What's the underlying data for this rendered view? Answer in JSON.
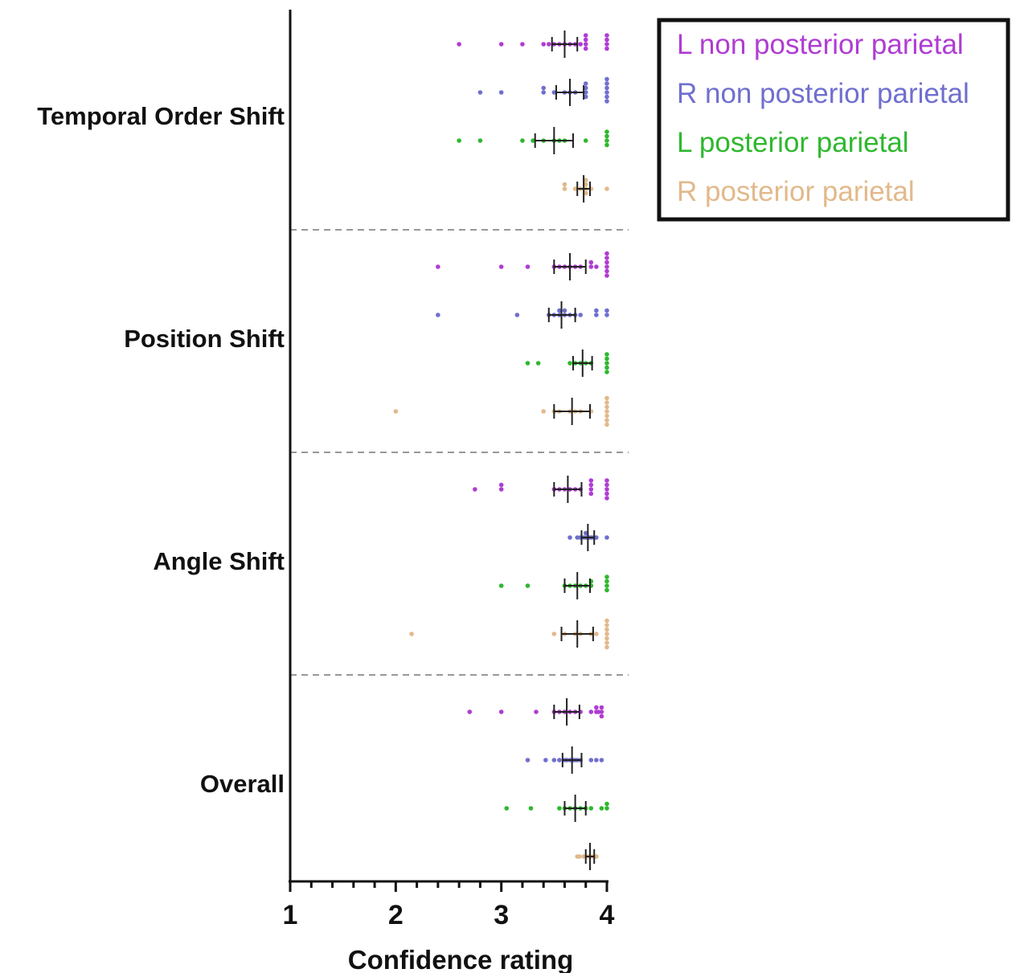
{
  "chart_data": {
    "type": "scatter",
    "orientation": "horizontal",
    "xlabel": "Confidence rating",
    "xlim": [
      1,
      4
    ],
    "xticks": [
      "1",
      "2",
      "3",
      "4"
    ],
    "groups": [
      "Temporal Order Shift",
      "Position Shift",
      "Angle Shift",
      "Overall"
    ],
    "legend_position": "top-right",
    "series": [
      {
        "name": "L non posterior parietal",
        "color": "#b03cd3"
      },
      {
        "name": "R non posterior parietal",
        "color": "#6f6fcf"
      },
      {
        "name": "L posterior parietal",
        "color": "#2eb82e"
      },
      {
        "name": "R posterior parietal",
        "color": "#e2b98b"
      }
    ],
    "data": [
      [
        {
          "points": [
            2.6,
            3.0,
            3.2,
            3.4,
            3.45,
            3.5,
            3.55,
            3.6,
            3.65,
            3.7,
            3.75,
            3.8,
            3.8,
            3.8,
            3.8,
            4.0,
            4.0,
            4.0,
            4.0
          ],
          "mean": 3.6,
          "err": [
            3.48,
            3.72
          ]
        },
        {
          "points": [
            2.8,
            3.0,
            3.4,
            3.4,
            3.5,
            3.6,
            3.65,
            3.7,
            3.8,
            3.8,
            3.8,
            3.8,
            4.0,
            4.0,
            4.0,
            4.0,
            4.0,
            4.0
          ],
          "mean": 3.65,
          "err": [
            3.52,
            3.78
          ]
        },
        {
          "points": [
            2.6,
            2.8,
            3.2,
            3.3,
            3.4,
            3.5,
            3.55,
            3.6,
            3.8,
            4.0,
            4.0,
            4.0,
            4.0
          ],
          "mean": 3.5,
          "err": [
            3.32,
            3.68
          ]
        },
        {
          "points": [
            3.6,
            3.6,
            3.7,
            3.75,
            3.8,
            3.8,
            3.8,
            3.8,
            3.85,
            4.0
          ],
          "mean": 3.78,
          "err": [
            3.72,
            3.84
          ]
        }
      ],
      [
        {
          "points": [
            2.4,
            3.0,
            3.25,
            3.5,
            3.55,
            3.6,
            3.65,
            3.7,
            3.75,
            3.85,
            3.85,
            3.9,
            4.0,
            4.0,
            4.0,
            4.0,
            4.0,
            4.0
          ],
          "mean": 3.65,
          "err": [
            3.5,
            3.8
          ]
        },
        {
          "points": [
            2.4,
            3.15,
            3.45,
            3.5,
            3.55,
            3.55,
            3.6,
            3.6,
            3.65,
            3.7,
            3.75,
            3.9,
            3.9,
            4.0,
            4.0
          ],
          "mean": 3.57,
          "err": [
            3.45,
            3.7
          ]
        },
        {
          "points": [
            3.25,
            3.35,
            3.65,
            3.7,
            3.75,
            3.8,
            3.85,
            4.0,
            4.0,
            4.0,
            4.0,
            4.0
          ],
          "mean": 3.77,
          "err": [
            3.68,
            3.86
          ]
        },
        {
          "points": [
            2.0,
            3.4,
            3.5,
            3.55,
            3.65,
            3.7,
            3.75,
            3.85,
            4.0,
            4.0,
            4.0,
            4.0,
            4.0,
            4.0,
            4.0
          ],
          "mean": 3.67,
          "err": [
            3.5,
            3.84
          ]
        }
      ],
      [
        {
          "points": [
            2.75,
            3.0,
            3.0,
            3.5,
            3.55,
            3.6,
            3.65,
            3.7,
            3.75,
            3.85,
            3.85,
            3.85,
            3.85,
            4.0,
            4.0,
            4.0,
            4.0,
            4.0
          ],
          "mean": 3.63,
          "err": [
            3.5,
            3.76
          ]
        },
        {
          "points": [
            3.65,
            3.72,
            3.75,
            3.78,
            3.8,
            3.8,
            3.82,
            3.83,
            3.85,
            3.86,
            3.88,
            3.9,
            4.0
          ],
          "mean": 3.82,
          "err": [
            3.76,
            3.88
          ]
        },
        {
          "points": [
            3.0,
            3.25,
            3.6,
            3.65,
            3.7,
            3.75,
            3.8,
            3.85,
            3.85,
            4.0,
            4.0,
            4.0,
            4.0
          ],
          "mean": 3.72,
          "err": [
            3.6,
            3.84
          ]
        },
        {
          "points": [
            2.15,
            3.5,
            3.6,
            3.7,
            3.75,
            3.85,
            3.9,
            4.0,
            4.0,
            4.0,
            4.0,
            4.0,
            4.0,
            4.0
          ],
          "mean": 3.72,
          "err": [
            3.57,
            3.87
          ]
        }
      ],
      [
        {
          "points": [
            2.7,
            3.0,
            3.33,
            3.5,
            3.55,
            3.6,
            3.65,
            3.7,
            3.75,
            3.85,
            3.9,
            3.9,
            3.92,
            3.95,
            3.95,
            3.95
          ],
          "mean": 3.62,
          "err": [
            3.5,
            3.74
          ]
        },
        {
          "points": [
            3.25,
            3.42,
            3.5,
            3.55,
            3.6,
            3.62,
            3.65,
            3.68,
            3.7,
            3.72,
            3.75,
            3.85,
            3.9,
            3.95
          ],
          "mean": 3.67,
          "err": [
            3.58,
            3.76
          ]
        },
        {
          "points": [
            3.05,
            3.28,
            3.55,
            3.6,
            3.65,
            3.7,
            3.75,
            3.8,
            3.85,
            3.95,
            4.0,
            4.0
          ],
          "mean": 3.7,
          "err": [
            3.6,
            3.8
          ]
        },
        {
          "points": [
            3.72,
            3.74,
            3.78,
            3.8,
            3.82,
            3.84,
            3.86,
            3.88,
            3.9
          ],
          "mean": 3.84,
          "err": [
            3.8,
            3.88
          ]
        }
      ]
    ]
  }
}
